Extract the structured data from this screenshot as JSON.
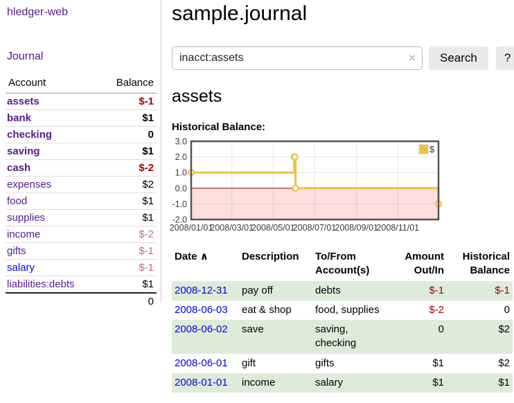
{
  "app": {
    "title": "hledger-web"
  },
  "sidebar": {
    "nav_journal": "Journal",
    "accounts": {
      "headers": {
        "account": "Account",
        "balance": "Balance"
      },
      "rows": [
        {
          "name": "assets",
          "balance": "$-1"
        },
        {
          "name": "bank",
          "balance": "$1"
        },
        {
          "name": "checking",
          "balance": "0"
        },
        {
          "name": "saving",
          "balance": "$1"
        },
        {
          "name": "cash",
          "balance": "$-2"
        },
        {
          "name": "expenses",
          "balance": "$2"
        },
        {
          "name": "food",
          "balance": "$1"
        },
        {
          "name": "supplies",
          "balance": "$1"
        },
        {
          "name": "income",
          "balance": "$-2"
        },
        {
          "name": "gifts",
          "balance": "$-1"
        },
        {
          "name": "salary",
          "balance": "$-1"
        },
        {
          "name": "liabilities:debts",
          "balance": "$1"
        }
      ],
      "total": "0"
    }
  },
  "header": {
    "title": "sample.journal"
  },
  "search": {
    "value": "inacct:assets",
    "clear_icon": "×",
    "button_label": "Search",
    "help_label": "?"
  },
  "account_page": {
    "heading": "assets",
    "chart_label": "Historical Balance:"
  },
  "chart_data": {
    "type": "line",
    "title": "Historical Balance",
    "series": [
      {
        "name": "$",
        "color": "#edc240",
        "steps": true,
        "points": [
          [
            "2008-01-01",
            1
          ],
          [
            "2008-06-01",
            2
          ],
          [
            "2008-06-02",
            2
          ],
          [
            "2008-06-03",
            0
          ],
          [
            "2008-12-31",
            -1
          ]
        ]
      }
    ],
    "xrange": [
      "2008-01-01",
      "2008-12-31"
    ],
    "ylim": [
      -2,
      3
    ],
    "ytick_values": [
      3,
      2,
      1,
      0,
      -1,
      -2
    ],
    "yticks": [
      "3.0",
      "2.0",
      "1.0",
      "0.0",
      "-1.0",
      "-2.0"
    ],
    "xticks": [
      {
        "label": "2008/01/01",
        "date": "2008-01-01"
      },
      {
        "label": "2008/03/01",
        "date": "2008-03-01"
      },
      {
        "label": "2008/05/01",
        "date": "2008-05-01"
      },
      {
        "label": "2008/07/01",
        "date": "2008-07-01"
      },
      {
        "label": "2008/09/01",
        "date": "2008-09-01"
      },
      {
        "label": "2008/11/01",
        "date": "2008-11-01"
      }
    ],
    "legend": {
      "label": "$",
      "position": "top-right"
    },
    "grid": true,
    "negative_region_color": "rgba(255,0,0,0.13)",
    "zero_line_color": "#990000",
    "border_color": "#545454"
  },
  "register": {
    "headers": {
      "date": "Date",
      "sort_icon": "∧",
      "description": "Description",
      "accounts": "To/From\nAccount(s)",
      "amount": "Amount\nOut/In",
      "balance": "Historical\nBalance"
    },
    "rows": [
      {
        "date": "2008-12-31",
        "description": "pay off",
        "accounts": "debts",
        "amount": "$-1",
        "balance": "$-1"
      },
      {
        "date": "2008-06-03",
        "description": "eat & shop",
        "accounts": "food, supplies",
        "amount": "$-2",
        "balance": "0"
      },
      {
        "date": "2008-06-02",
        "description": "save",
        "accounts": "saving,\nchecking",
        "amount": "0",
        "balance": "$2"
      },
      {
        "date": "2008-06-01",
        "description": "gift",
        "accounts": "gifts",
        "amount": "$1",
        "balance": "$2"
      },
      {
        "date": "2008-01-01",
        "description": "income",
        "accounts": "salary",
        "amount": "$1",
        "balance": "$1"
      }
    ]
  },
  "colors": {
    "link_purple": "#551a8b",
    "link_blue": "#0000ee",
    "negative_strong": "#a40000",
    "negative_light": "#c0706f",
    "row_stripe_green": "#ddecd9",
    "series_gold": "#edc240"
  }
}
